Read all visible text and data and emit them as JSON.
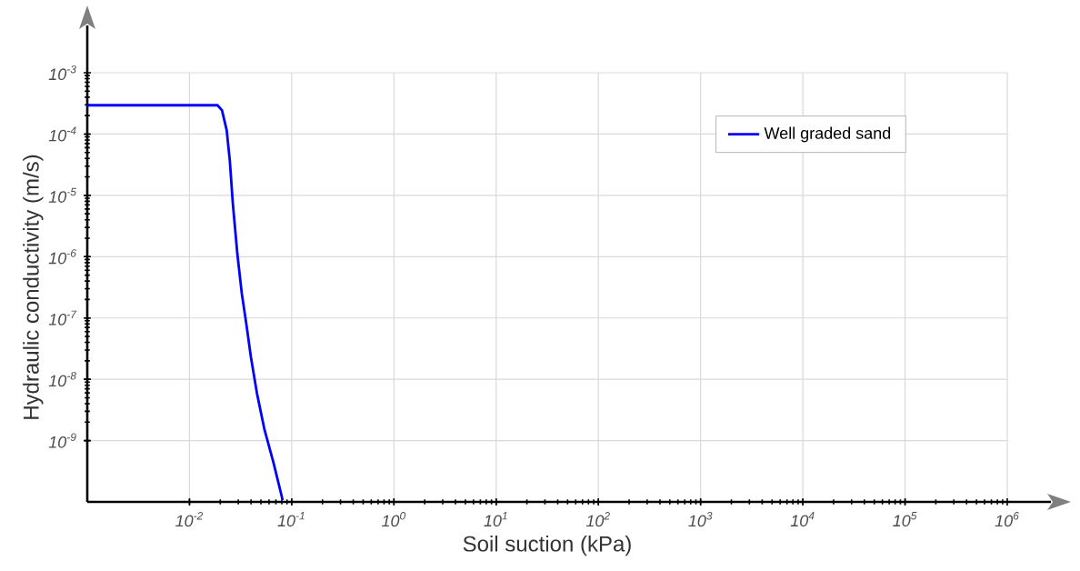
{
  "chart_data": {
    "type": "line",
    "xlabel": "Soil suction (kPa)",
    "ylabel": "Hydraulic conductivity (m/s)",
    "log": "xy",
    "xlim": [
      0.001,
      1000000
    ],
    "ylim": [
      1e-10,
      0.001
    ],
    "xticks": [
      {
        "value": 0.01,
        "label": "10$^{-2}$"
      },
      {
        "value": 0.1,
        "label": "10$^{-1}$"
      },
      {
        "value": 1,
        "label": "10$^{0}$"
      },
      {
        "value": 10,
        "label": "10$^{1}$"
      },
      {
        "value": 100,
        "label": "10$^{2}$"
      },
      {
        "value": 1000,
        "label": "10$^{3}$"
      },
      {
        "value": 10000,
        "label": "10$^{4}$"
      },
      {
        "value": 100000,
        "label": "10$^{5}$"
      },
      {
        "value": 1000000,
        "label": "10$^{6}$"
      }
    ],
    "yticks": [
      {
        "value": 1e-09,
        "label": "10$^{-9}$"
      },
      {
        "value": 1e-08,
        "label": "10$^{-8}$"
      },
      {
        "value": 1e-07,
        "label": "10$^{-7}$"
      },
      {
        "value": 1e-06,
        "label": "10$^{-6}$"
      },
      {
        "value": 1e-05,
        "label": "10$^{-5}$"
      },
      {
        "value": 0.0001,
        "label": "10$^{-4}$"
      },
      {
        "value": 0.001,
        "label": "10$^{-3}$"
      }
    ],
    "grid": true,
    "legend": "top right",
    "marker": "none",
    "line_style": "solid",
    "series": [
      {
        "name": "Well graded sand",
        "color": "#0000ff",
        "x": [
          0.001,
          0.0188,
          0.0208,
          0.0231,
          0.0248,
          0.0265,
          0.0294,
          0.0325,
          0.036,
          0.0399,
          0.0457,
          0.0542,
          0.0665,
          0.0815
        ],
        "values": [
          0.000295,
          0.000295,
          0.000243,
          0.000116,
          3.7e-05,
          7.6e-06,
          1.1e-06,
          2.5e-07,
          7.9e-08,
          2.3e-08,
          5.9e-09,
          1.5e-09,
          4.3e-10,
          1.07e-10
        ]
      }
    ]
  }
}
